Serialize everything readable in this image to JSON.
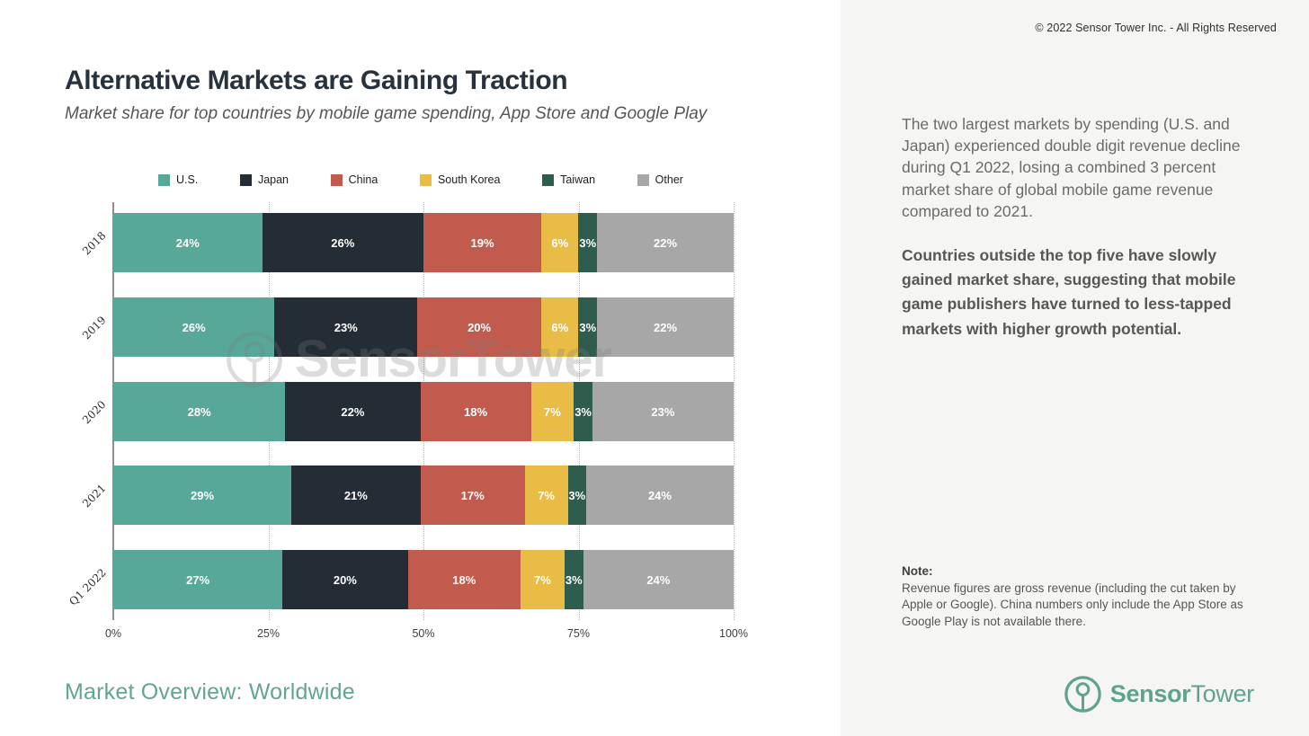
{
  "header": {
    "title": "Alternative Markets are Gaining Traction",
    "subtitle": "Market share for top countries by mobile game spending, App Store and Google Play"
  },
  "right_panel": {
    "para1": "The two largest markets by spending (U.S. and Japan) experienced double digit revenue decline during Q1 2022, losing a combined 3 percent market share of global mobile game revenue compared to 2021.",
    "para2": "Countries outside the top five have slowly gained market share, suggesting that mobile game publishers have turned to less-tapped markets with higher growth potential.",
    "note_label": "Note:",
    "note_text": "Revenue figures are gross revenue (including the cut taken by Apple or Google). China numbers only include the App Store as Google Play is not available there."
  },
  "branding": {
    "copyright": "© 2022 Sensor Tower Inc. - All Rights Reserved",
    "watermark_text": "SensorTower",
    "logo_sensor": "Sensor",
    "logo_tower": "Tower",
    "brand_color": "#5EA390"
  },
  "footer": {
    "left_label": "Market Overview: Worldwide"
  },
  "chart_data": {
    "type": "bar",
    "orientation": "horizontal",
    "stacked": true,
    "title": "Alternative Markets are Gaining Traction",
    "subtitle": "Market share for top countries by mobile game spending, App Store and Google Play",
    "categories": [
      "2018",
      "2019",
      "2020",
      "2021",
      "Q1 2022"
    ],
    "series": [
      {
        "name": "U.S.",
        "color": "#57A898",
        "values": [
          24,
          26,
          28,
          29,
          27
        ]
      },
      {
        "name": "Japan",
        "color": "#242C36",
        "values": [
          26,
          23,
          22,
          21,
          20
        ]
      },
      {
        "name": "China",
        "color": "#C15B4D",
        "values": [
          19,
          20,
          18,
          17,
          18
        ]
      },
      {
        "name": "South Korea",
        "color": "#E8BC45",
        "values": [
          6,
          6,
          7,
          7,
          7
        ]
      },
      {
        "name": "Taiwan",
        "color": "#2E5D4E",
        "values": [
          3,
          3,
          3,
          3,
          3
        ]
      },
      {
        "name": "Other",
        "color": "#A7A7A7",
        "values": [
          22,
          22,
          23,
          24,
          24
        ]
      }
    ],
    "unit": "%",
    "xlim": [
      0,
      100
    ],
    "x_ticks": [
      "0%",
      "25%",
      "50%",
      "75%",
      "100%"
    ],
    "x_tick_positions": [
      0,
      25,
      50,
      75,
      100
    ],
    "gridline_positions": [
      25,
      50,
      75,
      100
    ],
    "grid": "dotted-vertical",
    "legend_position": "top",
    "value_labels": "inside-white-bold"
  }
}
